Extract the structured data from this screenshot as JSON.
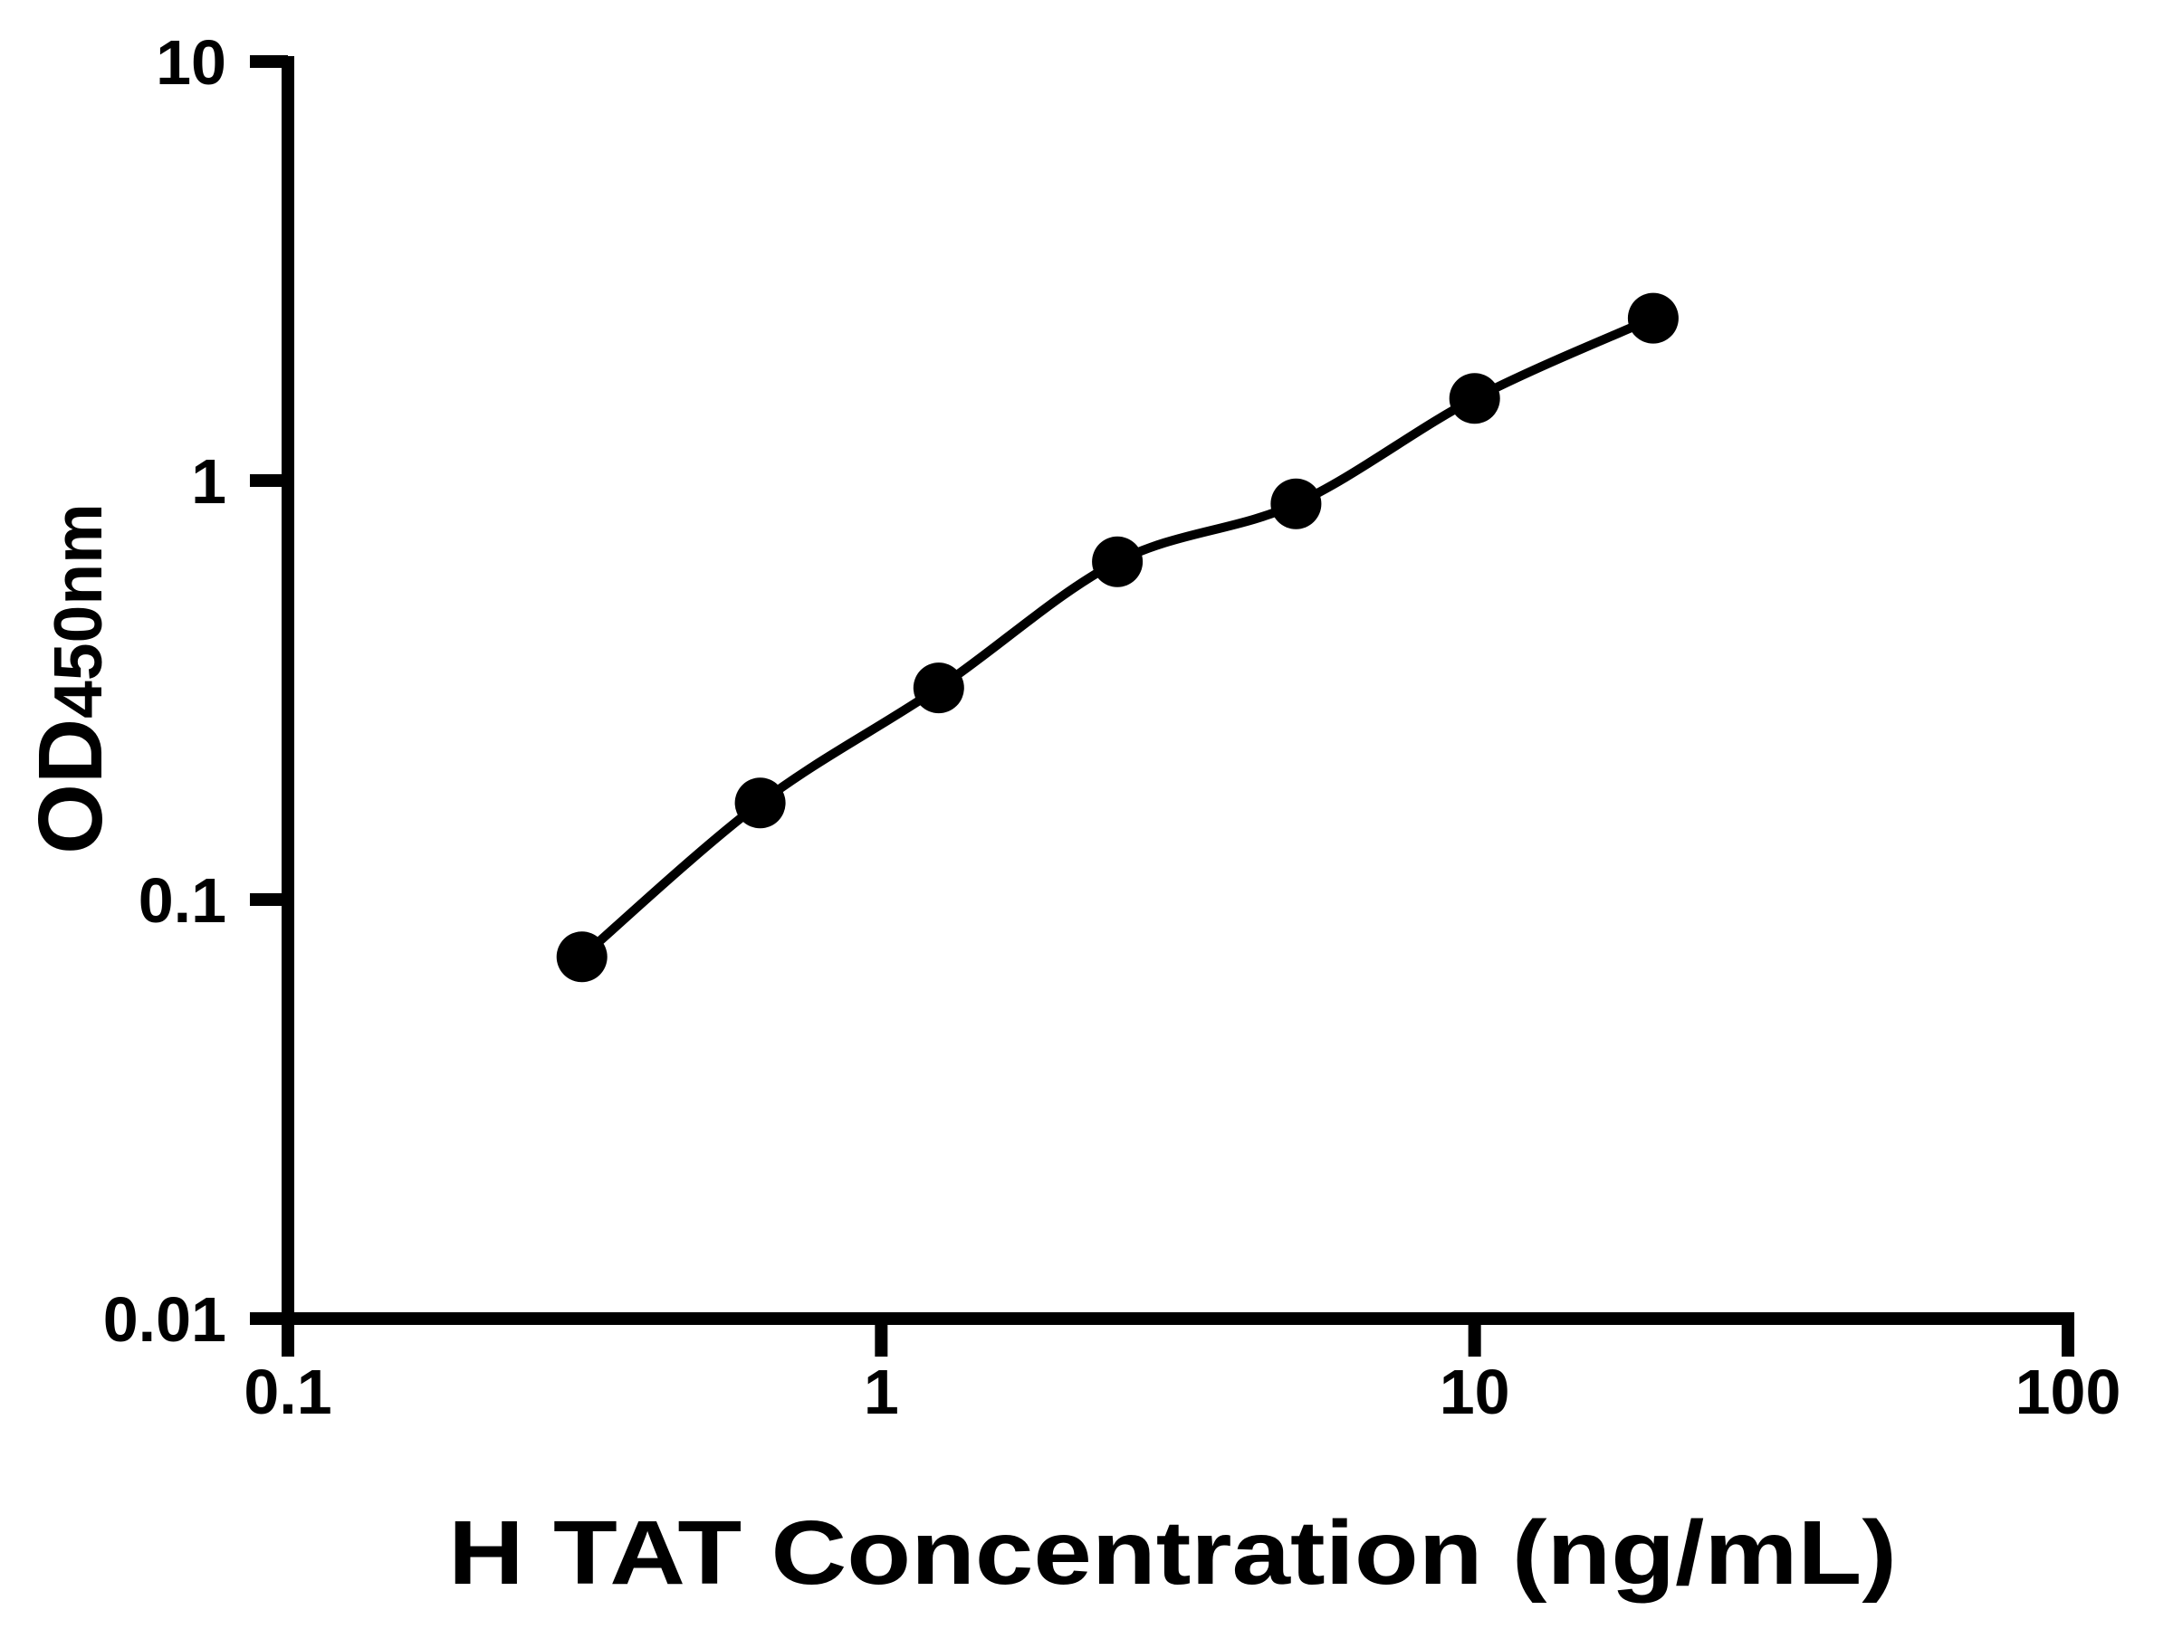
{
  "chart_data": {
    "type": "line",
    "x": [
      0.313,
      0.625,
      1.25,
      2.5,
      5,
      10,
      20
    ],
    "y": [
      0.073,
      0.17,
      0.32,
      0.64,
      0.88,
      1.57,
      2.44
    ],
    "xlabel": "H TAT Concentration (ng/mL)",
    "ylabel": "OD450nm",
    "ylabel_main": "OD",
    "ylabel_sub": "450nm",
    "x_scale": "log",
    "y_scale": "log",
    "xlim": [
      0.1,
      100
    ],
    "ylim": [
      0.01,
      10
    ],
    "x_ticks": {
      "values": [
        0.1,
        1,
        10,
        100
      ],
      "labels": [
        "0.1",
        "1",
        "10",
        "100"
      ]
    },
    "y_ticks": {
      "values": [
        0.01,
        0.1,
        1,
        10
      ],
      "labels": [
        "0.01",
        "0.1",
        "1",
        "10"
      ]
    },
    "grid": false,
    "legend": "none",
    "marker": "circle",
    "marker_color": "#000000",
    "line_color": "#000000",
    "axis_color": "#000000",
    "background": "#ffffff"
  }
}
